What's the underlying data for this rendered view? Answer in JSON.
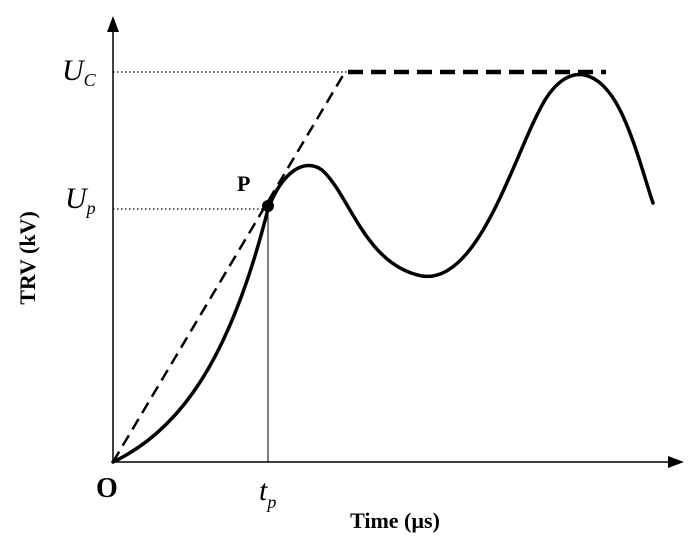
{
  "diagram": {
    "origin_label": "O",
    "point_label": "P",
    "y_axis_label": "TRV (kV)",
    "x_axis_label": "Time (µs)",
    "uc_main": "U",
    "uc_sub": "C",
    "up_main": "U",
    "up_sub": "p",
    "tp_main": "t",
    "tp_sub": "p"
  },
  "colors": {
    "stroke": "#000000",
    "background": "#ffffff"
  }
}
